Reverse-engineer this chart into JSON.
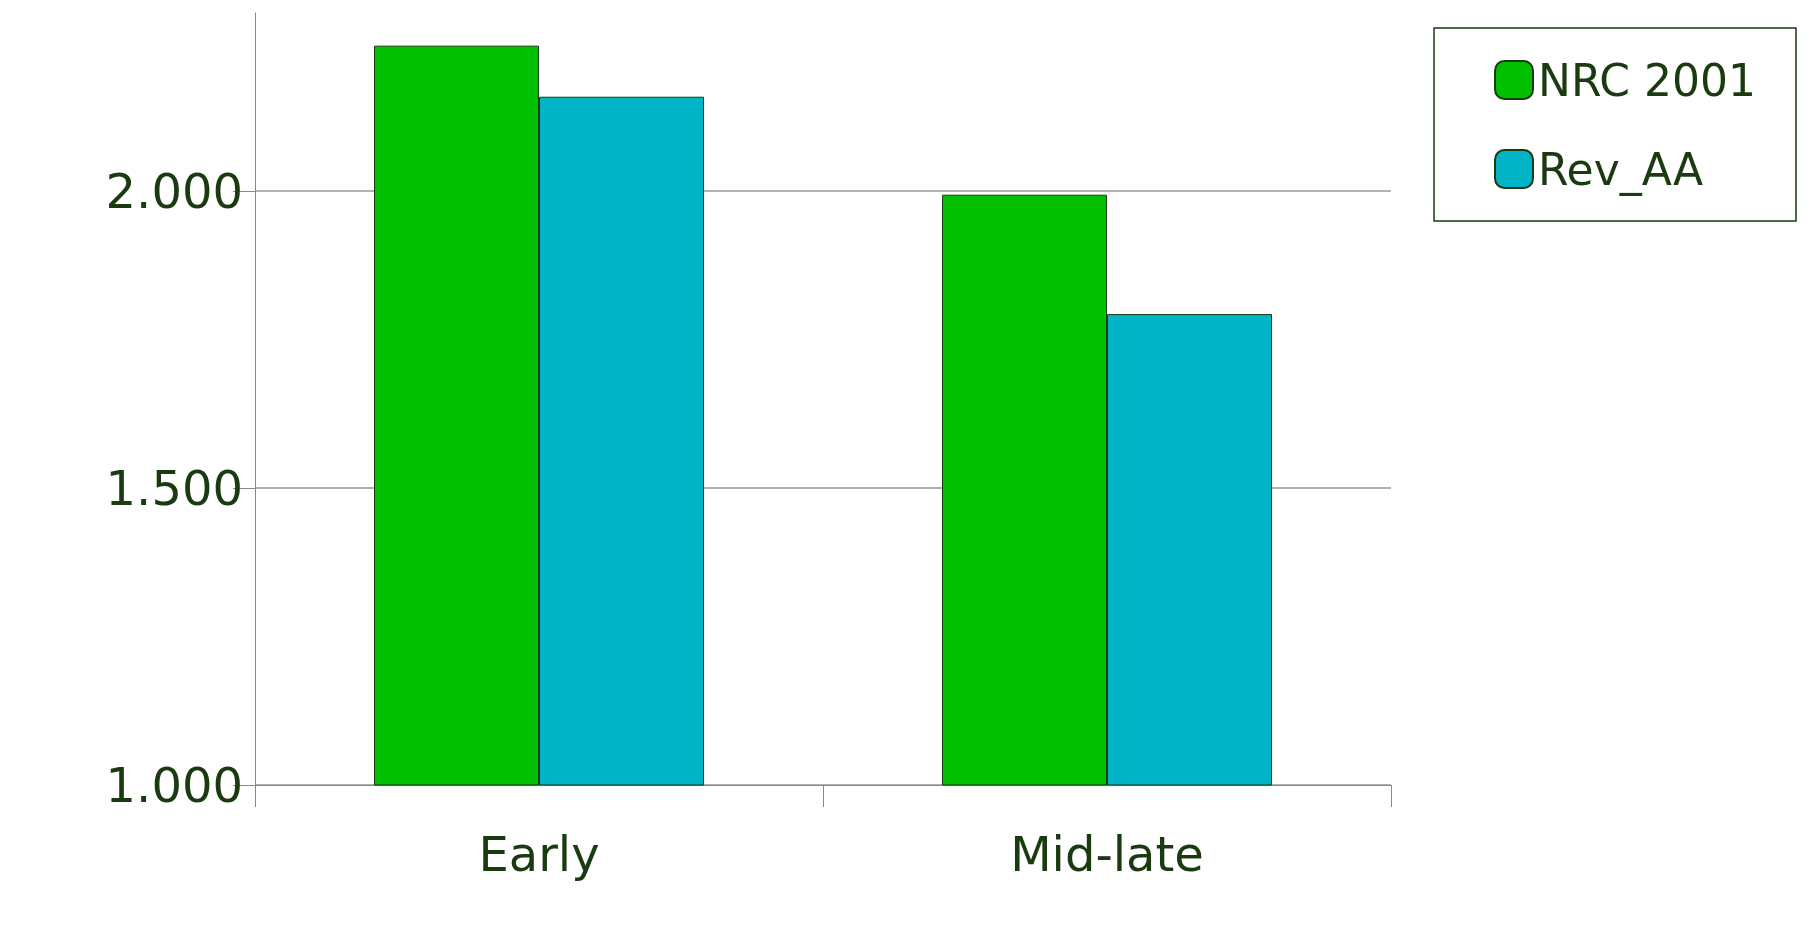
{
  "chart_data": {
    "type": "bar",
    "categories": [
      "Early",
      "Mid-late"
    ],
    "series": [
      {
        "name": "NRC 2001",
        "color": "#00c000",
        "values": [
          2245,
          1994
        ]
      },
      {
        "name": "Rev_AA",
        "color": "#00b4c8",
        "values": [
          2159,
          1793
        ]
      }
    ],
    "ylim": [
      1000,
      2300
    ],
    "yticks": [
      {
        "value": 1000,
        "label": "1.000"
      },
      {
        "value": 1500,
        "label": "1.500"
      },
      {
        "value": 2000,
        "label": "2.000"
      }
    ],
    "grid": "y",
    "legend": "top right"
  }
}
